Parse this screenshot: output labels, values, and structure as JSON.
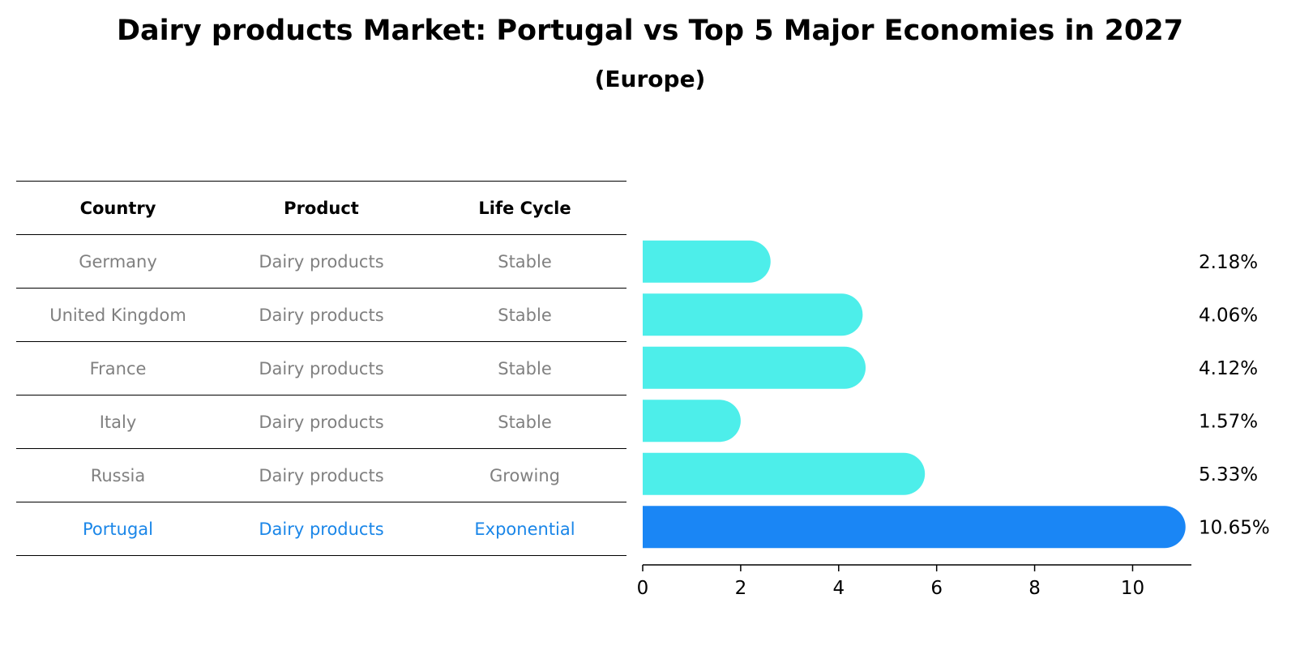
{
  "title": "Dairy products Market: Portugal vs Top 5 Major Economies in 2027",
  "subtitle": "(Europe)",
  "table": {
    "headers": [
      "Country",
      "Product",
      "Life Cycle"
    ],
    "rows": [
      [
        "Germany",
        "Dairy products",
        "Stable"
      ],
      [
        "United Kingdom",
        "Dairy products",
        "Stable"
      ],
      [
        "France",
        "Dairy products",
        "Stable"
      ],
      [
        "Italy",
        "Dairy products",
        "Stable"
      ],
      [
        "Russia",
        "Dairy products",
        "Growing"
      ],
      [
        "Portugal",
        "Dairy products",
        "Exponential"
      ]
    ]
  },
  "colors": {
    "bar_default": "#4deeea",
    "bar_highlight": "#1a86f5",
    "text_muted": "#808080",
    "text_highlight": "#1a86e8"
  },
  "chart_data": {
    "type": "bar",
    "orientation": "horizontal",
    "categories": [
      "Germany",
      "United Kingdom",
      "France",
      "Italy",
      "Russia",
      "Portugal"
    ],
    "values": [
      2.18,
      4.06,
      4.12,
      1.57,
      5.33,
      10.65
    ],
    "value_labels": [
      "2.18%",
      "4.06%",
      "4.12%",
      "1.57%",
      "5.33%",
      "10.65%"
    ],
    "highlight": "Portugal",
    "xlim": [
      0,
      11.2
    ],
    "xticks": [
      0,
      2,
      4,
      6,
      8,
      10
    ],
    "title": "Dairy products Market: Portugal vs Top 5 Major Economies in 2027",
    "xlabel": "",
    "ylabel": "",
    "grid": false
  }
}
